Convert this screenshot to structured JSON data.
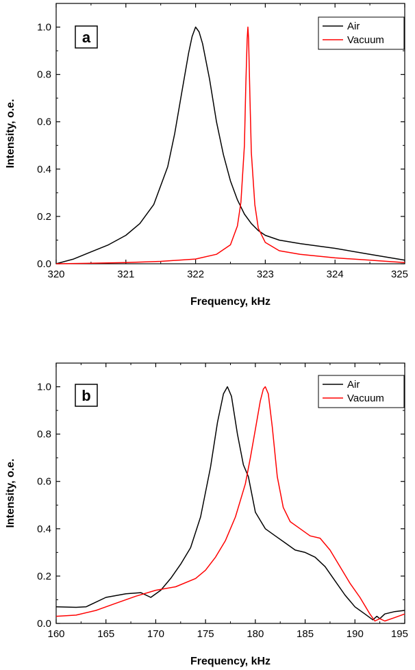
{
  "chart_data": [
    {
      "id": "a",
      "type": "line",
      "panel_label": "a",
      "xlabel": "Frequency, kHz",
      "ylabel": "Intensity, o.e.",
      "xlim": [
        320,
        325
      ],
      "ylim": [
        0,
        1.1
      ],
      "xticks": [
        320,
        321,
        322,
        323,
        324,
        325
      ],
      "xtick_labels": [
        "320",
        "321",
        "322",
        "323",
        "324",
        "325"
      ],
      "yticks": [
        0.0,
        0.2,
        0.4,
        0.6,
        0.8,
        1.0
      ],
      "ytick_labels": [
        "0.0",
        "0.2",
        "0.4",
        "0.6",
        "0.8",
        "1.0"
      ],
      "legend_position": "top-right",
      "series": [
        {
          "name": "Air",
          "color": "#000000",
          "x": [
            320.0,
            320.25,
            320.5,
            320.75,
            321.0,
            321.2,
            321.4,
            321.6,
            321.7,
            321.8,
            321.9,
            321.95,
            322.0,
            322.05,
            322.1,
            322.2,
            322.3,
            322.4,
            322.5,
            322.6,
            322.7,
            322.8,
            322.9,
            323.0,
            323.2,
            323.5,
            324.0,
            324.5,
            325.0
          ],
          "y": [
            0.0,
            0.02,
            0.05,
            0.08,
            0.12,
            0.17,
            0.25,
            0.41,
            0.55,
            0.72,
            0.89,
            0.96,
            1.0,
            0.98,
            0.93,
            0.78,
            0.6,
            0.46,
            0.35,
            0.27,
            0.21,
            0.17,
            0.14,
            0.12,
            0.1,
            0.085,
            0.065,
            0.04,
            0.015
          ]
        },
        {
          "name": "Vacuum",
          "color": "#ff0000",
          "x": [
            320.0,
            320.5,
            321.0,
            321.5,
            322.0,
            322.3,
            322.5,
            322.6,
            322.65,
            322.7,
            322.72,
            322.74,
            322.75,
            322.76,
            322.78,
            322.8,
            322.85,
            322.9,
            323.0,
            323.2,
            323.5,
            324.0,
            324.5,
            325.0
          ],
          "y": [
            0.0,
            0.002,
            0.005,
            0.01,
            0.02,
            0.04,
            0.08,
            0.16,
            0.26,
            0.5,
            0.75,
            0.95,
            1.0,
            0.95,
            0.7,
            0.47,
            0.25,
            0.15,
            0.09,
            0.055,
            0.04,
            0.025,
            0.015,
            0.005
          ]
        }
      ]
    },
    {
      "id": "b",
      "type": "line",
      "panel_label": "b",
      "xlabel": "Frequency, kHz",
      "ylabel": "Intensity, o.e.",
      "xlim": [
        160,
        195
      ],
      "ylim": [
        0,
        1.1
      ],
      "xticks": [
        160,
        165,
        170,
        175,
        180,
        185,
        190,
        195
      ],
      "xtick_labels": [
        "160",
        "165",
        "170",
        "175",
        "180",
        "185",
        "190",
        "195"
      ],
      "yticks": [
        0.0,
        0.2,
        0.4,
        0.6,
        0.8,
        1.0
      ],
      "ytick_labels": [
        "0.0",
        "0.2",
        "0.4",
        "0.6",
        "0.8",
        "1.0"
      ],
      "legend_position": "top-right",
      "series": [
        {
          "name": "Air",
          "color": "#000000",
          "x": [
            160,
            162,
            163,
            165,
            167,
            168.5,
            169.5,
            170.5,
            171.5,
            172.5,
            173.5,
            174.5,
            175.5,
            176.2,
            176.8,
            177.2,
            177.6,
            178.2,
            178.8,
            179.3,
            180,
            181,
            182,
            183,
            184,
            185,
            186,
            187,
            188,
            189,
            190,
            191,
            191.8,
            192.2,
            192.5,
            193,
            194,
            195
          ],
          "y": [
            0.07,
            0.068,
            0.07,
            0.11,
            0.125,
            0.13,
            0.11,
            0.14,
            0.19,
            0.25,
            0.32,
            0.45,
            0.66,
            0.85,
            0.97,
            1.0,
            0.96,
            0.8,
            0.67,
            0.62,
            0.47,
            0.4,
            0.37,
            0.34,
            0.31,
            0.3,
            0.28,
            0.24,
            0.18,
            0.12,
            0.07,
            0.04,
            0.015,
            0.03,
            0.02,
            0.04,
            0.05,
            0.055
          ]
        },
        {
          "name": "Vacuum",
          "color": "#ff0000",
          "x": [
            160,
            162,
            164,
            166,
            168,
            170,
            172,
            174,
            175,
            176,
            177,
            178,
            179,
            179.5,
            180,
            180.5,
            180.8,
            181,
            181.3,
            181.7,
            182.2,
            182.8,
            183.5,
            184.5,
            185.5,
            186.5,
            187.5,
            188.5,
            189.5,
            190.5,
            191.5,
            192,
            192.5,
            193,
            194,
            195
          ],
          "y": [
            0.03,
            0.035,
            0.055,
            0.085,
            0.115,
            0.14,
            0.155,
            0.19,
            0.225,
            0.28,
            0.35,
            0.45,
            0.59,
            0.7,
            0.82,
            0.94,
            0.99,
            1.0,
            0.97,
            0.83,
            0.62,
            0.49,
            0.43,
            0.4,
            0.37,
            0.36,
            0.31,
            0.24,
            0.17,
            0.11,
            0.04,
            0.01,
            0.02,
            0.01,
            0.025,
            0.04
          ]
        }
      ]
    }
  ]
}
